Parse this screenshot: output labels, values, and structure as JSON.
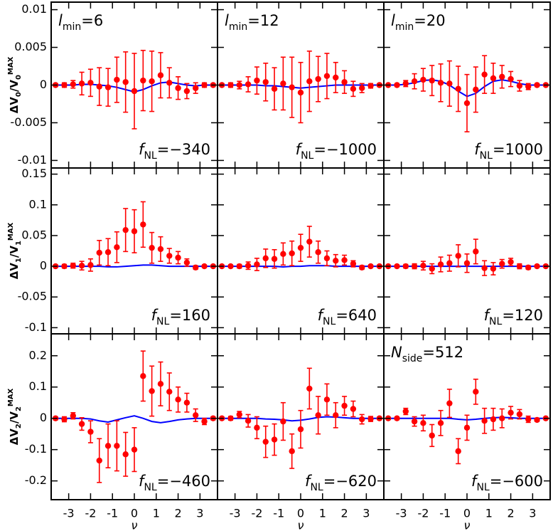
{
  "chart_data": [
    {
      "type": "scatter",
      "x": [
        -3.6,
        -3.2,
        -2.8,
        -2.4,
        -2.0,
        -1.6,
        -1.2,
        -0.8,
        -0.4,
        0,
        0.4,
        0.8,
        1.2,
        1.6,
        2.0,
        2.4,
        2.8,
        3.2,
        3.6
      ],
      "values": [
        0,
        0,
        0.0001,
        0.0002,
        0.0003,
        -0.0002,
        -0.0003,
        0.0007,
        0.0004,
        -0.0008,
        0.0006,
        0.0005,
        0.0013,
        0.0003,
        -0.0004,
        -0.0008,
        -0.0004,
        0,
        0
      ],
      "errors": [
        0.0002,
        0.0003,
        0.0005,
        0.0015,
        0.0018,
        0.0025,
        0.0025,
        0.003,
        0.004,
        0.005,
        0.004,
        0.004,
        0.003,
        0.002,
        0.0015,
        0.001,
        0.0007,
        0.0003,
        0.0002
      ],
      "line": [
        0,
        0,
        0,
        0.0001,
        0.0001,
        0,
        -0.0001,
        -0.0003,
        -0.0006,
        -0.0009,
        -0.0006,
        -0.0001,
        0.0003,
        0.0004,
        0.0002,
        0,
        -0.0001,
        0,
        0
      ],
      "color": "#ff0000",
      "line_color": "#0000ff",
      "xlim": [
        -3.8,
        3.8
      ],
      "xticks": [
        -3,
        -2,
        -1,
        0,
        1,
        2,
        3
      ],
      "ylim": [
        -0.011,
        0.011
      ],
      "yticks": [
        -0.01,
        -0.005,
        0,
        0.005,
        0.01
      ],
      "ylabel": [
        {
          "t": "ΔV"
        },
        {
          "t": "0",
          "s": "sub"
        },
        {
          "t": "/V"
        },
        {
          "t": "0",
          "s": "sub"
        },
        {
          "t": "MAX",
          "s": "sup"
        }
      ],
      "annotations": [
        {
          "corner": "top-left",
          "main": "l",
          "sub": "min",
          "rest": "=6"
        },
        {
          "corner": "bottom-right",
          "main": "f",
          "sub": "NL",
          "rest": "=−340"
        }
      ]
    },
    {
      "type": "scatter",
      "x": [
        -3.6,
        -3.2,
        -2.8,
        -2.4,
        -2.0,
        -1.6,
        -1.2,
        -0.8,
        -0.4,
        0,
        0.4,
        0.8,
        1.2,
        1.6,
        2.0,
        2.4,
        2.8,
        3.2,
        3.6
      ],
      "values": [
        0,
        0,
        0,
        0.0001,
        0.0006,
        0.0004,
        -0.0005,
        0.0002,
        -0.0003,
        -0.001,
        0.0005,
        0.0008,
        0.0012,
        0.001,
        0.0004,
        -0.0005,
        -0.0004,
        -0.0001,
        0
      ],
      "errors": [
        0.0002,
        0.0003,
        0.0005,
        0.001,
        0.0018,
        0.0025,
        0.0028,
        0.0035,
        0.004,
        0.004,
        0.004,
        0.003,
        0.003,
        0.002,
        0.0015,
        0.001,
        0.0006,
        0.0003,
        0.0002
      ],
      "line": [
        0,
        0,
        0,
        0,
        0,
        -0.0001,
        -0.0001,
        -0.0002,
        -0.0003,
        -0.0004,
        -0.0003,
        -0.0002,
        -0.0001,
        0,
        0,
        0,
        0,
        0,
        0
      ],
      "color": "#ff0000",
      "line_color": "#0000ff",
      "xlim": [
        -3.8,
        3.8
      ],
      "xticks": [
        -3,
        -2,
        -1,
        0,
        1,
        2,
        3
      ],
      "ylim": [
        -0.011,
        0.011
      ],
      "yticks": [
        -0.01,
        -0.005,
        0,
        0.005,
        0.01
      ],
      "annotations": [
        {
          "corner": "top-left",
          "main": "l",
          "sub": "min",
          "rest": "=12"
        },
        {
          "corner": "bottom-right",
          "main": "f",
          "sub": "NL",
          "rest": "=−1000"
        }
      ]
    },
    {
      "type": "scatter",
      "x": [
        -3.6,
        -3.2,
        -2.8,
        -2.4,
        -2.0,
        -1.6,
        -1.2,
        -0.8,
        -0.4,
        0,
        0.4,
        0.8,
        1.2,
        1.6,
        2.0,
        2.4,
        2.8,
        3.2,
        3.6
      ],
      "values": [
        0,
        0,
        0.0002,
        0.0005,
        0.0007,
        0.0006,
        0.0003,
        0.0002,
        -0.0005,
        -0.0024,
        -0.0006,
        0.0014,
        0.0009,
        0.0011,
        0.0008,
        -0.0001,
        -0.0002,
        0,
        0
      ],
      "errors": [
        0.0001,
        0.0002,
        0.0004,
        0.001,
        0.0015,
        0.002,
        0.0025,
        0.003,
        0.003,
        0.0038,
        0.003,
        0.0025,
        0.002,
        0.0015,
        0.001,
        0.0007,
        0.0004,
        0.0002,
        0.0001
      ],
      "line": [
        0,
        0,
        0.0001,
        0.0003,
        0.0006,
        0.0007,
        0.0005,
        0,
        -0.0008,
        -0.0015,
        -0.0011,
        -0.0002,
        0.0005,
        0.0007,
        0.0005,
        0.0002,
        0,
        0,
        0
      ],
      "color": "#ff0000",
      "line_color": "#0000ff",
      "xlim": [
        -3.8,
        3.8
      ],
      "xticks": [
        -3,
        -2,
        -1,
        0,
        1,
        2,
        3
      ],
      "ylim": [
        -0.011,
        0.011
      ],
      "yticks": [
        -0.01,
        -0.005,
        0,
        0.005,
        0.01
      ],
      "annotations": [
        {
          "corner": "top-left",
          "main": "l",
          "sub": "min",
          "rest": "=20"
        },
        {
          "corner": "bottom-right",
          "main": "f",
          "sub": "NL",
          "rest": "=1000"
        }
      ]
    },
    {
      "type": "scatter",
      "x": [
        -3.6,
        -3.2,
        -2.8,
        -2.4,
        -2.0,
        -1.6,
        -1.2,
        -0.8,
        -0.4,
        0,
        0.4,
        0.8,
        1.2,
        1.6,
        2.0,
        2.4,
        2.8,
        3.2,
        3.6
      ],
      "values": [
        0,
        0,
        0.001,
        0.001,
        0.002,
        0.022,
        0.023,
        0.031,
        0.059,
        0.057,
        0.068,
        0.03,
        0.028,
        0.017,
        0.014,
        0.006,
        -0.002,
        0,
        0
      ],
      "errors": [
        0.002,
        0.003,
        0.004,
        0.007,
        0.01,
        0.02,
        0.022,
        0.025,
        0.035,
        0.035,
        0.037,
        0.025,
        0.02,
        0.012,
        0.01,
        0.006,
        0.003,
        0.002,
        0.001
      ],
      "line": [
        0,
        0,
        0,
        0,
        0,
        0,
        -0.001,
        -0.001,
        0,
        0.001,
        0.002,
        0.002,
        0.001,
        0,
        0,
        0,
        0,
        0,
        0
      ],
      "color": "#ff0000",
      "line_color": "#0000ff",
      "xlim": [
        -3.8,
        3.8
      ],
      "xticks": [
        -3,
        -2,
        -1,
        0,
        1,
        2,
        3
      ],
      "ylim": [
        -0.11,
        0.16
      ],
      "yticks": [
        -0.1,
        -0.05,
        0,
        0.05,
        0.1,
        0.15
      ],
      "ylabel": [
        {
          "t": "ΔV"
        },
        {
          "t": "1",
          "s": "sub"
        },
        {
          "t": "/V"
        },
        {
          "t": "1",
          "s": "sub"
        },
        {
          "t": "MAX",
          "s": "sup"
        }
      ],
      "annotations": [
        {
          "corner": "bottom-right",
          "main": "f",
          "sub": "NL",
          "rest": "=160"
        }
      ]
    },
    {
      "type": "scatter",
      "x": [
        -3.6,
        -3.2,
        -2.8,
        -2.4,
        -2.0,
        -1.6,
        -1.2,
        -0.8,
        -0.4,
        0,
        0.4,
        0.8,
        1.2,
        1.6,
        2.0,
        2.4,
        2.8,
        3.2,
        3.6
      ],
      "values": [
        0,
        0,
        0,
        0.001,
        0.003,
        0.013,
        0.012,
        0.02,
        0.021,
        0.03,
        0.04,
        0.023,
        0.013,
        0.009,
        0.01,
        0.004,
        -0.002,
        0,
        0
      ],
      "errors": [
        0.001,
        0.002,
        0.003,
        0.006,
        0.01,
        0.015,
        0.015,
        0.018,
        0.02,
        0.022,
        0.025,
        0.018,
        0.012,
        0.01,
        0.008,
        0.005,
        0.003,
        0.002,
        0.001
      ],
      "line": [
        0,
        0,
        0,
        0,
        0,
        0,
        0,
        -0.001,
        0,
        0,
        0.001,
        0.001,
        0.001,
        0,
        0,
        0,
        0,
        0,
        0
      ],
      "color": "#ff0000",
      "line_color": "#0000ff",
      "xlim": [
        -3.8,
        3.8
      ],
      "xticks": [
        -3,
        -2,
        -1,
        0,
        1,
        2,
        3
      ],
      "ylim": [
        -0.11,
        0.16
      ],
      "yticks": [
        -0.1,
        -0.05,
        0,
        0.05,
        0.1,
        0.15
      ],
      "annotations": [
        {
          "corner": "bottom-right",
          "main": "f",
          "sub": "NL",
          "rest": "=640"
        }
      ]
    },
    {
      "type": "scatter",
      "x": [
        -3.6,
        -3.2,
        -2.8,
        -2.4,
        -2.0,
        -1.6,
        -1.2,
        -0.8,
        -0.4,
        0,
        0.4,
        0.8,
        1.2,
        1.6,
        2.0,
        2.4,
        2.8,
        3.2,
        3.6
      ],
      "values": [
        0,
        0,
        0,
        0,
        0.001,
        -0.004,
        0.003,
        0.005,
        0.017,
        0.005,
        0.024,
        -0.003,
        -0.004,
        0.004,
        0.007,
        0,
        -0.002,
        0,
        0
      ],
      "errors": [
        0.001,
        0.002,
        0.003,
        0.004,
        0.007,
        0.008,
        0.012,
        0.013,
        0.018,
        0.015,
        0.02,
        0.012,
        0.01,
        0.007,
        0.006,
        0.004,
        0.003,
        0.002,
        0.001
      ],
      "line": [
        0,
        0,
        0,
        0,
        0,
        0,
        0,
        0,
        0,
        0,
        0,
        0,
        0,
        0,
        0,
        0,
        0,
        0,
        0
      ],
      "color": "#ff0000",
      "line_color": "#0000ff",
      "xlim": [
        -3.8,
        3.8
      ],
      "xticks": [
        -3,
        -2,
        -1,
        0,
        1,
        2,
        3
      ],
      "ylim": [
        -0.11,
        0.16
      ],
      "yticks": [
        -0.1,
        -0.05,
        0,
        0.05,
        0.1,
        0.15
      ],
      "annotations": [
        {
          "corner": "bottom-right",
          "main": "f",
          "sub": "NL",
          "rest": "=120"
        }
      ]
    },
    {
      "type": "scatter",
      "x": [
        -3.6,
        -3.2,
        -2.8,
        -2.4,
        -2.0,
        -1.6,
        -1.2,
        -0.8,
        -0.4,
        0,
        0.4,
        0.8,
        1.2,
        1.6,
        2.0,
        2.4,
        2.8,
        3.2,
        3.6
      ],
      "values": [
        0,
        -0.003,
        0.008,
        -0.018,
        -0.043,
        -0.135,
        -0.088,
        -0.088,
        -0.115,
        -0.1,
        0.135,
        0.087,
        0.11,
        0.085,
        0.06,
        0.05,
        0.01,
        -0.01,
        0
      ],
      "errors": [
        0.005,
        0.008,
        0.01,
        0.02,
        0.035,
        0.07,
        0.07,
        0.08,
        0.07,
        0.07,
        0.08,
        0.08,
        0.07,
        0.06,
        0.04,
        0.03,
        0.02,
        0.01,
        0.005
      ],
      "line": [
        0,
        0,
        0,
        0,
        -0.002,
        -0.008,
        -0.012,
        -0.005,
        0.002,
        0.008,
        0,
        -0.01,
        -0.014,
        -0.01,
        -0.005,
        -0.002,
        0,
        0,
        0
      ],
      "color": "#ff0000",
      "line_color": "#0000ff",
      "xlim": [
        -3.8,
        3.8
      ],
      "xticks": [
        -3,
        -2,
        -1,
        0,
        1,
        2,
        3
      ],
      "ylim": [
        -0.26,
        0.27
      ],
      "yticks": [
        -0.2,
        -0.1,
        0,
        0.1,
        0.2
      ],
      "xlabel": "ν",
      "ylabel": [
        {
          "t": "ΔV"
        },
        {
          "t": "2",
          "s": "sub"
        },
        {
          "t": "/V"
        },
        {
          "t": "2",
          "s": "sub"
        },
        {
          "t": "MAX",
          "s": "sup"
        }
      ],
      "annotations": [
        {
          "corner": "bottom-right",
          "main": "f",
          "sub": "NL",
          "rest": "=−460"
        }
      ]
    },
    {
      "type": "scatter",
      "x": [
        -3.6,
        -3.2,
        -2.8,
        -2.4,
        -2.0,
        -1.6,
        -1.2,
        -0.8,
        -0.4,
        0,
        0.4,
        0.8,
        1.2,
        1.6,
        2.0,
        2.4,
        2.8,
        3.2,
        3.6
      ],
      "values": [
        0,
        0,
        0.012,
        -0.008,
        -0.03,
        -0.075,
        -0.068,
        -0.01,
        -0.105,
        -0.035,
        0.095,
        0.01,
        0.06,
        0.01,
        0.04,
        0.03,
        -0.003,
        -0.002,
        0
      ],
      "errors": [
        0.004,
        0.006,
        0.01,
        0.02,
        0.035,
        0.05,
        0.05,
        0.06,
        0.055,
        0.06,
        0.065,
        0.06,
        0.05,
        0.04,
        0.03,
        0.025,
        0.015,
        0.008,
        0.004
      ],
      "line": [
        0,
        0,
        0,
        0,
        0,
        -0.002,
        -0.003,
        -0.005,
        -0.008,
        -0.006,
        -0.002,
        0.003,
        0.005,
        0.004,
        0.002,
        0,
        0,
        0,
        0
      ],
      "color": "#ff0000",
      "line_color": "#0000ff",
      "xlim": [
        -3.8,
        3.8
      ],
      "xticks": [
        -3,
        -2,
        -1,
        0,
        1,
        2,
        3
      ],
      "ylim": [
        -0.26,
        0.27
      ],
      "yticks": [
        -0.2,
        -0.1,
        0,
        0.1,
        0.2
      ],
      "xlabel": "ν",
      "annotations": [
        {
          "corner": "bottom-right",
          "main": "f",
          "sub": "NL",
          "rest": "=−620"
        }
      ]
    },
    {
      "type": "scatter",
      "x": [
        -3.6,
        -3.2,
        -2.8,
        -2.4,
        -2.0,
        -1.6,
        -1.2,
        -0.8,
        -0.4,
        0,
        0.4,
        0.8,
        1.2,
        1.6,
        2.0,
        2.4,
        2.8,
        3.2,
        3.6
      ],
      "values": [
        0,
        0,
        0.022,
        -0.01,
        -0.015,
        -0.055,
        -0.015,
        0.048,
        -0.105,
        -0.03,
        0.085,
        -0.008,
        -0.003,
        0,
        0.018,
        0.013,
        -0.003,
        -0.005,
        0
      ],
      "errors": [
        0.003,
        0.004,
        0.01,
        0.015,
        0.025,
        0.035,
        0.04,
        0.045,
        0.04,
        0.04,
        0.04,
        0.04,
        0.035,
        0.03,
        0.02,
        0.015,
        0.01,
        0.005,
        0.003
      ],
      "line": [
        0,
        0,
        0,
        0,
        0,
        0,
        0,
        0,
        -0.003,
        -0.005,
        -0.003,
        0,
        0.002,
        0.003,
        0.002,
        0,
        0,
        0,
        0
      ],
      "color": "#ff0000",
      "line_color": "#0000ff",
      "xlim": [
        -3.8,
        3.8
      ],
      "xticks": [
        -3,
        -2,
        -1,
        0,
        1,
        2,
        3
      ],
      "ylim": [
        -0.26,
        0.27
      ],
      "yticks": [
        -0.2,
        -0.1,
        0,
        0.1,
        0.2
      ],
      "xlabel": "ν",
      "annotations": [
        {
          "corner": "top-left",
          "main": "N",
          "sub": "side",
          "rest": "=512"
        },
        {
          "corner": "bottom-right",
          "main": "f",
          "sub": "NL",
          "rest": "=−600"
        }
      ]
    }
  ]
}
